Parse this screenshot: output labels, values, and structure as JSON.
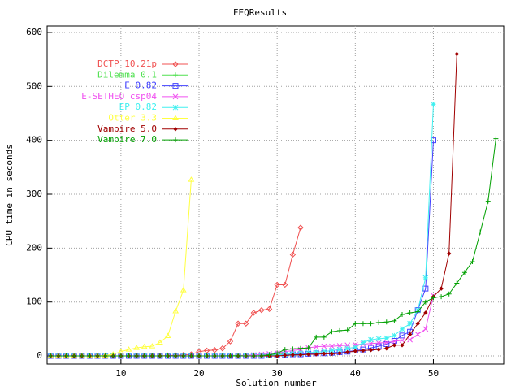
{
  "chart_data": {
    "type": "line",
    "title": "FEQResults",
    "x_label": "Solution number",
    "y_label": "CPU time in seconds",
    "x": [
      1,
      2,
      3,
      4,
      5,
      6,
      7,
      8,
      9,
      10,
      11,
      12,
      13,
      14,
      15,
      16,
      17,
      18,
      19,
      20,
      21,
      22,
      23,
      24,
      25,
      26,
      27,
      28,
      29,
      30,
      31,
      32,
      33,
      34,
      35,
      36,
      37,
      38,
      39,
      40,
      41,
      42,
      43,
      44,
      45,
      46,
      47,
      48,
      49,
      50,
      51,
      52,
      53,
      54,
      55,
      56,
      57,
      58
    ],
    "xlim": [
      0.55,
      59
    ],
    "ylim": [
      -15,
      612
    ],
    "xticks": [
      10,
      20,
      30,
      40,
      50
    ],
    "yticks": [
      0,
      100,
      200,
      300,
      400,
      500,
      600
    ],
    "grid": true,
    "legend": "upper-left",
    "series": [
      {
        "name": "DCTP 10.21p",
        "color": "#f05050",
        "values": [
          0,
          0,
          0,
          0,
          0,
          0,
          0,
          0,
          0,
          0,
          0,
          0,
          0,
          0,
          0,
          1,
          1,
          2,
          3,
          8,
          10,
          11,
          14,
          27,
          60,
          60,
          80,
          85,
          87,
          132,
          132,
          188,
          238,
          null,
          null,
          null,
          null,
          null,
          null,
          null,
          null,
          null,
          null,
          null,
          null,
          null,
          null,
          null,
          null,
          null,
          null,
          null,
          null,
          null,
          null,
          null,
          null,
          null
        ]
      },
      {
        "name": "Dilemma 0.1",
        "color": "#50e050",
        "values": [
          0,
          0,
          0,
          0,
          0,
          0,
          0,
          0,
          0,
          0,
          0,
          0,
          0,
          0,
          0,
          0,
          0,
          0,
          0,
          0,
          0,
          0,
          0,
          1,
          1,
          1,
          2,
          2,
          3,
          3,
          4,
          4,
          5,
          null,
          null,
          null,
          null,
          null,
          null,
          null,
          null,
          null,
          null,
          null,
          null,
          null,
          null,
          null,
          null,
          null,
          null,
          null,
          null,
          null,
          null,
          null,
          null,
          null
        ]
      },
      {
        "name": "E 0.82",
        "color": "#4040ff",
        "values": [
          0,
          0,
          0,
          0,
          0,
          0,
          0,
          0,
          0,
          0,
          0,
          0,
          0,
          0,
          0,
          0,
          0,
          0,
          0,
          0,
          0,
          0,
          0,
          0,
          0,
          0,
          0,
          0,
          1,
          2,
          2,
          3,
          3,
          4,
          5,
          5,
          6,
          7,
          8,
          10,
          12,
          15,
          18,
          22,
          28,
          38,
          45,
          85,
          125,
          400,
          null,
          null,
          null,
          null,
          null,
          null,
          null,
          null
        ]
      },
      {
        "name": "E-SETHEO csp04",
        "color": "#f050f0",
        "values": [
          0,
          0,
          0,
          0,
          0,
          0,
          0,
          0,
          0,
          0,
          0,
          0,
          0,
          0,
          0,
          0,
          0,
          0,
          0,
          0,
          0,
          0,
          0,
          0,
          0,
          1,
          2,
          3,
          4,
          6,
          8,
          10,
          12,
          15,
          17,
          18,
          18,
          19,
          20,
          21,
          22,
          23,
          24,
          25,
          27,
          29,
          30,
          40,
          50,
          112,
          null,
          null,
          null,
          null,
          null,
          null,
          null,
          null
        ]
      },
      {
        "name": "EP 0.82",
        "color": "#40f0f0",
        "values": [
          0,
          0,
          0,
          0,
          0,
          0,
          0,
          0,
          0,
          0,
          0,
          0,
          0,
          0,
          0,
          0,
          0,
          0,
          0,
          0,
          0,
          0,
          0,
          0,
          0,
          0,
          0,
          0,
          1,
          2,
          3,
          4,
          5,
          6,
          7,
          8,
          10,
          12,
          14,
          16,
          25,
          30,
          32,
          33,
          38,
          50,
          60,
          85,
          145,
          467,
          null,
          null,
          null,
          null,
          null,
          null,
          null,
          null
        ]
      },
      {
        "name": "Otter 3.3",
        "color": "#ffff40",
        "values": [
          0,
          0,
          0,
          0,
          0,
          0,
          0,
          1,
          3,
          8,
          12,
          15,
          17,
          18,
          25,
          37,
          83,
          122,
          327,
          null,
          null,
          null,
          null,
          null,
          null,
          null,
          null,
          null,
          null,
          null,
          null,
          null,
          null,
          null,
          null,
          null,
          null,
          null,
          null,
          null,
          null,
          null,
          null,
          null,
          null,
          null,
          null,
          null,
          null,
          null,
          null,
          null,
          null,
          null,
          null,
          null,
          null,
          null
        ]
      },
      {
        "name": "Vampire 5.0",
        "color": "#a00000",
        "values": [
          0,
          0,
          0,
          0,
          0,
          0,
          0,
          0,
          0,
          0,
          0,
          0,
          0,
          0,
          0,
          0,
          0,
          0,
          0,
          0,
          0,
          0,
          0,
          0,
          0,
          0,
          0,
          0,
          0,
          0,
          1,
          2,
          2,
          3,
          3,
          4,
          4,
          5,
          7,
          9,
          10,
          11,
          12,
          14,
          20,
          20,
          40,
          60,
          80,
          110,
          125,
          190,
          560,
          null,
          null,
          null,
          null,
          null
        ]
      },
      {
        "name": "Vampire 7.0",
        "color": "#00a000",
        "values": [
          0,
          0,
          0,
          0,
          0,
          0,
          0,
          0,
          0,
          0,
          0,
          0,
          0,
          0,
          0,
          0,
          0,
          0,
          0,
          0,
          0,
          0,
          0,
          0,
          0,
          0,
          0,
          0,
          2,
          5,
          12,
          13,
          14,
          15,
          35,
          35,
          45,
          47,
          48,
          60,
          60,
          60,
          62,
          63,
          65,
          77,
          80,
          82,
          100,
          108,
          110,
          115,
          135,
          155,
          175,
          230,
          287,
          403
        ]
      }
    ]
  }
}
